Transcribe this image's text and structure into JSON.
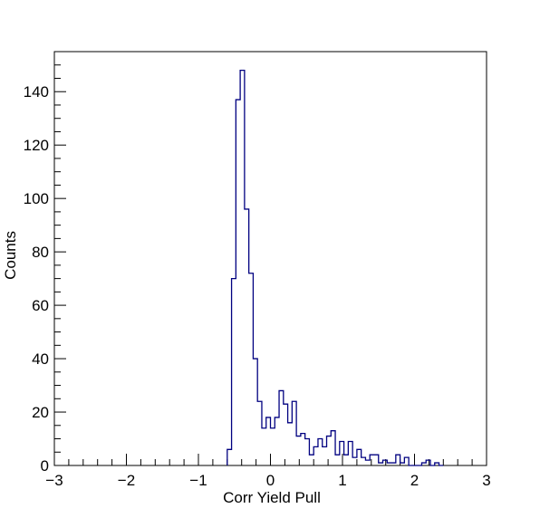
{
  "chart_data": {
    "type": "histogram",
    "title": "",
    "xlabel": "Corr Yield Pull",
    "ylabel": "Counts",
    "xlim": [
      -3,
      3
    ],
    "ylim": [
      0,
      155
    ],
    "x_major_ticks": [
      -3,
      -2,
      -1,
      0,
      1,
      2,
      3
    ],
    "x_tick_labels": [
      "−3",
      "−2",
      "−1",
      "0",
      "1",
      "2",
      "3"
    ],
    "y_major_ticks": [
      0,
      20,
      40,
      60,
      80,
      100,
      120,
      140
    ],
    "y_tick_labels": [
      "0",
      "20",
      "40",
      "60",
      "80",
      "100",
      "120",
      "140"
    ],
    "grid": false,
    "legend": "none",
    "line_color": "#000080",
    "bin_width": 0.06,
    "bins": [
      {
        "x0": -0.6,
        "count": 6
      },
      {
        "x0": -0.54,
        "count": 70
      },
      {
        "x0": -0.48,
        "count": 137
      },
      {
        "x0": -0.42,
        "count": 148
      },
      {
        "x0": -0.36,
        "count": 96
      },
      {
        "x0": -0.3,
        "count": 72
      },
      {
        "x0": -0.24,
        "count": 40
      },
      {
        "x0": -0.18,
        "count": 24
      },
      {
        "x0": -0.12,
        "count": 14
      },
      {
        "x0": -0.06,
        "count": 18
      },
      {
        "x0": 0.0,
        "count": 14
      },
      {
        "x0": 0.06,
        "count": 18
      },
      {
        "x0": 0.12,
        "count": 28
      },
      {
        "x0": 0.18,
        "count": 23
      },
      {
        "x0": 0.24,
        "count": 16
      },
      {
        "x0": 0.3,
        "count": 24
      },
      {
        "x0": 0.36,
        "count": 11
      },
      {
        "x0": 0.42,
        "count": 12
      },
      {
        "x0": 0.48,
        "count": 10
      },
      {
        "x0": 0.54,
        "count": 4
      },
      {
        "x0": 0.6,
        "count": 7
      },
      {
        "x0": 0.66,
        "count": 10
      },
      {
        "x0": 0.72,
        "count": 7
      },
      {
        "x0": 0.78,
        "count": 11
      },
      {
        "x0": 0.84,
        "count": 13
      },
      {
        "x0": 0.9,
        "count": 4
      },
      {
        "x0": 0.96,
        "count": 9
      },
      {
        "x0": 1.02,
        "count": 4
      },
      {
        "x0": 1.08,
        "count": 9
      },
      {
        "x0": 1.14,
        "count": 3
      },
      {
        "x0": 1.2,
        "count": 6
      },
      {
        "x0": 1.26,
        "count": 3
      },
      {
        "x0": 1.32,
        "count": 2
      },
      {
        "x0": 1.38,
        "count": 4
      },
      {
        "x0": 1.44,
        "count": 4
      },
      {
        "x0": 1.5,
        "count": 1
      },
      {
        "x0": 1.56,
        "count": 2
      },
      {
        "x0": 1.62,
        "count": 1
      },
      {
        "x0": 1.68,
        "count": 1
      },
      {
        "x0": 1.74,
        "count": 4
      },
      {
        "x0": 1.8,
        "count": 1
      },
      {
        "x0": 1.86,
        "count": 3
      },
      {
        "x0": 1.92,
        "count": 0
      },
      {
        "x0": 1.98,
        "count": 0
      },
      {
        "x0": 2.04,
        "count": 0
      },
      {
        "x0": 2.1,
        "count": 1
      },
      {
        "x0": 2.16,
        "count": 2
      },
      {
        "x0": 2.22,
        "count": 0
      },
      {
        "x0": 2.28,
        "count": 1
      },
      {
        "x0": 2.34,
        "count": 0
      }
    ]
  }
}
